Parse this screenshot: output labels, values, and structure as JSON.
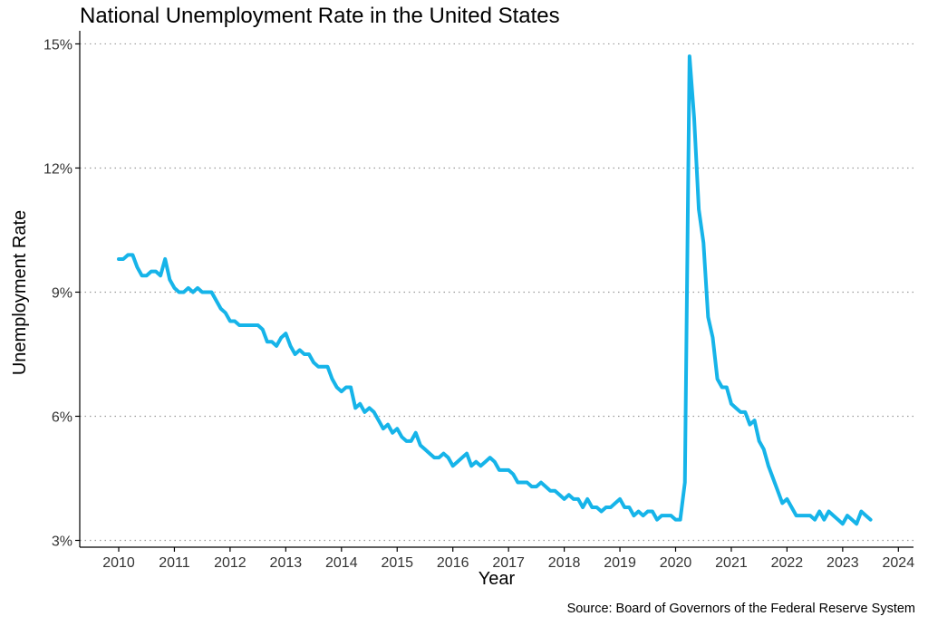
{
  "chart_data": {
    "type": "line",
    "title": "National Unemployment Rate in the United States",
    "xlabel": "Year",
    "ylabel": "Unemployment Rate",
    "source": "Source: Board of Governors of the Federal Reserve System",
    "xlim": [
      2010,
      2024
    ],
    "ylim": [
      3,
      15
    ],
    "x_ticks": [
      2010,
      2011,
      2012,
      2013,
      2014,
      2015,
      2016,
      2017,
      2018,
      2019,
      2020,
      2021,
      2022,
      2023,
      2024
    ],
    "x_tick_labels": [
      "2010",
      "2011",
      "2012",
      "2013",
      "2014",
      "2015",
      "2016",
      "2017",
      "2018",
      "2019",
      "2020",
      "2021",
      "2022",
      "2023",
      "2024"
    ],
    "y_ticks": [
      3,
      6,
      9,
      12,
      15
    ],
    "y_tick_labels": [
      "3%",
      "6%",
      "9%",
      "12%",
      "15%"
    ],
    "grid": "horizontal dotted",
    "colors": {
      "line": "#16b4e9",
      "grid": "#9a9a9a",
      "axis": "#000000"
    },
    "series": [
      {
        "values": [
          [
            "2010-01",
            9.8
          ],
          [
            "2010-02",
            9.8
          ],
          [
            "2010-03",
            9.9
          ],
          [
            "2010-04",
            9.9
          ],
          [
            "2010-05",
            9.6
          ],
          [
            "2010-06",
            9.4
          ],
          [
            "2010-07",
            9.4
          ],
          [
            "2010-08",
            9.5
          ],
          [
            "2010-09",
            9.5
          ],
          [
            "2010-10",
            9.4
          ],
          [
            "2010-11",
            9.8
          ],
          [
            "2010-12",
            9.3
          ],
          [
            "2011-01",
            9.1
          ],
          [
            "2011-02",
            9.0
          ],
          [
            "2011-03",
            9.0
          ],
          [
            "2011-04",
            9.1
          ],
          [
            "2011-05",
            9.0
          ],
          [
            "2011-06",
            9.1
          ],
          [
            "2011-07",
            9.0
          ],
          [
            "2011-08",
            9.0
          ],
          [
            "2011-09",
            9.0
          ],
          [
            "2011-10",
            8.8
          ],
          [
            "2011-11",
            8.6
          ],
          [
            "2011-12",
            8.5
          ],
          [
            "2012-01",
            8.3
          ],
          [
            "2012-02",
            8.3
          ],
          [
            "2012-03",
            8.2
          ],
          [
            "2012-04",
            8.2
          ],
          [
            "2012-05",
            8.2
          ],
          [
            "2012-06",
            8.2
          ],
          [
            "2012-07",
            8.2
          ],
          [
            "2012-08",
            8.1
          ],
          [
            "2012-09",
            7.8
          ],
          [
            "2012-10",
            7.8
          ],
          [
            "2012-11",
            7.7
          ],
          [
            "2012-12",
            7.9
          ],
          [
            "2013-01",
            8.0
          ],
          [
            "2013-02",
            7.7
          ],
          [
            "2013-03",
            7.5
          ],
          [
            "2013-04",
            7.6
          ],
          [
            "2013-05",
            7.5
          ],
          [
            "2013-06",
            7.5
          ],
          [
            "2013-07",
            7.3
          ],
          [
            "2013-08",
            7.2
          ],
          [
            "2013-09",
            7.2
          ],
          [
            "2013-10",
            7.2
          ],
          [
            "2013-11",
            6.9
          ],
          [
            "2013-12",
            6.7
          ],
          [
            "2014-01",
            6.6
          ],
          [
            "2014-02",
            6.7
          ],
          [
            "2014-03",
            6.7
          ],
          [
            "2014-04",
            6.2
          ],
          [
            "2014-05",
            6.3
          ],
          [
            "2014-06",
            6.1
          ],
          [
            "2014-07",
            6.2
          ],
          [
            "2014-08",
            6.1
          ],
          [
            "2014-09",
            5.9
          ],
          [
            "2014-10",
            5.7
          ],
          [
            "2014-11",
            5.8
          ],
          [
            "2014-12",
            5.6
          ],
          [
            "2015-01",
            5.7
          ],
          [
            "2015-02",
            5.5
          ],
          [
            "2015-03",
            5.4
          ],
          [
            "2015-04",
            5.4
          ],
          [
            "2015-05",
            5.6
          ],
          [
            "2015-06",
            5.3
          ],
          [
            "2015-07",
            5.2
          ],
          [
            "2015-08",
            5.1
          ],
          [
            "2015-09",
            5.0
          ],
          [
            "2015-10",
            5.0
          ],
          [
            "2015-11",
            5.1
          ],
          [
            "2015-12",
            5.0
          ],
          [
            "2016-01",
            4.8
          ],
          [
            "2016-02",
            4.9
          ],
          [
            "2016-03",
            5.0
          ],
          [
            "2016-04",
            5.1
          ],
          [
            "2016-05",
            4.8
          ],
          [
            "2016-06",
            4.9
          ],
          [
            "2016-07",
            4.8
          ],
          [
            "2016-08",
            4.9
          ],
          [
            "2016-09",
            5.0
          ],
          [
            "2016-10",
            4.9
          ],
          [
            "2016-11",
            4.7
          ],
          [
            "2016-12",
            4.7
          ],
          [
            "2017-01",
            4.7
          ],
          [
            "2017-02",
            4.6
          ],
          [
            "2017-03",
            4.4
          ],
          [
            "2017-04",
            4.4
          ],
          [
            "2017-05",
            4.4
          ],
          [
            "2017-06",
            4.3
          ],
          [
            "2017-07",
            4.3
          ],
          [
            "2017-08",
            4.4
          ],
          [
            "2017-09",
            4.3
          ],
          [
            "2017-10",
            4.2
          ],
          [
            "2017-11",
            4.2
          ],
          [
            "2017-12",
            4.1
          ],
          [
            "2018-01",
            4.0
          ],
          [
            "2018-02",
            4.1
          ],
          [
            "2018-03",
            4.0
          ],
          [
            "2018-04",
            4.0
          ],
          [
            "2018-05",
            3.8
          ],
          [
            "2018-06",
            4.0
          ],
          [
            "2018-07",
            3.8
          ],
          [
            "2018-08",
            3.8
          ],
          [
            "2018-09",
            3.7
          ],
          [
            "2018-10",
            3.8
          ],
          [
            "2018-11",
            3.8
          ],
          [
            "2018-12",
            3.9
          ],
          [
            "2019-01",
            4.0
          ],
          [
            "2019-02",
            3.8
          ],
          [
            "2019-03",
            3.8
          ],
          [
            "2019-04",
            3.6
          ],
          [
            "2019-05",
            3.7
          ],
          [
            "2019-06",
            3.6
          ],
          [
            "2019-07",
            3.7
          ],
          [
            "2019-08",
            3.7
          ],
          [
            "2019-09",
            3.5
          ],
          [
            "2019-10",
            3.6
          ],
          [
            "2019-11",
            3.6
          ],
          [
            "2019-12",
            3.6
          ],
          [
            "2020-01",
            3.5
          ],
          [
            "2020-02",
            3.5
          ],
          [
            "2020-03",
            4.4
          ],
          [
            "2020-04",
            14.7
          ],
          [
            "2020-05",
            13.2
          ],
          [
            "2020-06",
            11.0
          ],
          [
            "2020-07",
            10.2
          ],
          [
            "2020-08",
            8.4
          ],
          [
            "2020-09",
            7.9
          ],
          [
            "2020-10",
            6.9
          ],
          [
            "2020-11",
            6.7
          ],
          [
            "2020-12",
            6.7
          ],
          [
            "2021-01",
            6.3
          ],
          [
            "2021-02",
            6.2
          ],
          [
            "2021-03",
            6.1
          ],
          [
            "2021-04",
            6.1
          ],
          [
            "2021-05",
            5.8
          ],
          [
            "2021-06",
            5.9
          ],
          [
            "2021-07",
            5.4
          ],
          [
            "2021-08",
            5.2
          ],
          [
            "2021-09",
            4.8
          ],
          [
            "2021-10",
            4.5
          ],
          [
            "2021-11",
            4.2
          ],
          [
            "2021-12",
            3.9
          ],
          [
            "2022-01",
            4.0
          ],
          [
            "2022-02",
            3.8
          ],
          [
            "2022-03",
            3.6
          ],
          [
            "2022-04",
            3.6
          ],
          [
            "2022-05",
            3.6
          ],
          [
            "2022-06",
            3.6
          ],
          [
            "2022-07",
            3.5
          ],
          [
            "2022-08",
            3.7
          ],
          [
            "2022-09",
            3.5
          ],
          [
            "2022-10",
            3.7
          ],
          [
            "2022-11",
            3.6
          ],
          [
            "2022-12",
            3.5
          ],
          [
            "2023-01",
            3.4
          ],
          [
            "2023-02",
            3.6
          ],
          [
            "2023-03",
            3.5
          ],
          [
            "2023-04",
            3.4
          ],
          [
            "2023-05",
            3.7
          ],
          [
            "2023-06",
            3.6
          ],
          [
            "2023-07",
            3.5
          ]
        ]
      }
    ]
  }
}
